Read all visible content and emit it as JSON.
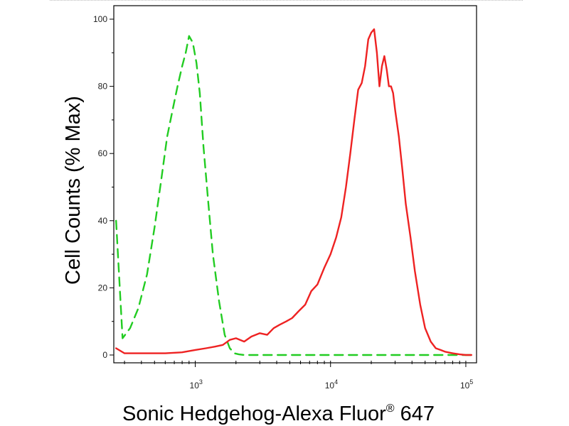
{
  "chart_data": {
    "type": "line",
    "title": "",
    "xlabel": "Sonic Hedgehog-Alexa Fluor",
    "xlabel_superscript": "®",
    "xlabel_suffix": " 647",
    "ylabel": "Cell Counts (% Max)",
    "xscale": "log",
    "xlim": [
      250,
      120000
    ],
    "ylim": [
      0,
      105
    ],
    "x_ticks": [
      {
        "value": 1000,
        "base": "10",
        "exp": "3"
      },
      {
        "value": 10000,
        "base": "10",
        "exp": "4"
      },
      {
        "value": 100000,
        "base": "10",
        "exp": "5"
      }
    ],
    "y_ticks": [
      "0",
      "20",
      "40",
      "60",
      "80",
      "100"
    ],
    "grid": false,
    "series": [
      {
        "color": "#22cc22",
        "style": "dashed",
        "x": [
          260,
          290,
          330,
          380,
          440,
          500,
          560,
          620,
          680,
          740,
          800,
          850,
          900,
          960,
          1020,
          1080,
          1150,
          1250,
          1350,
          1500,
          1650,
          1800,
          1950,
          2100,
          2300,
          2600,
          3000,
          5000,
          10000,
          50000,
          110000
        ],
        "y": [
          40,
          5,
          8,
          14,
          24,
          38,
          52,
          65,
          73,
          80,
          86,
          90,
          95,
          93,
          87,
          78,
          62,
          45,
          30,
          16,
          6,
          2,
          0.5,
          0.2,
          0,
          0,
          0,
          0,
          0,
          0,
          0
        ]
      },
      {
        "color": "#ee2222",
        "style": "solid",
        "x": [
          260,
          300,
          400,
          600,
          800,
          1000,
          1200,
          1400,
          1600,
          1800,
          2000,
          2300,
          2600,
          3000,
          3400,
          3800,
          4200,
          4700,
          5200,
          5800,
          6500,
          7200,
          8000,
          9000,
          10000,
          11000,
          12000,
          13000,
          14000,
          15000,
          16000,
          17000,
          18000,
          19000,
          20000,
          21000,
          22000,
          23000,
          24000,
          25000,
          26000,
          27000,
          28000,
          29000,
          30000,
          32000,
          34000,
          36000,
          39000,
          42000,
          46000,
          50000,
          55000,
          60000,
          65000,
          70000,
          80000,
          90000,
          100000,
          110000
        ],
        "y": [
          2,
          0.5,
          0.5,
          0.5,
          0.8,
          1.5,
          2,
          2.5,
          3,
          4.5,
          5,
          4,
          5.5,
          6.5,
          6,
          8,
          9,
          10,
          11,
          13,
          15,
          19,
          21,
          26,
          30,
          35,
          41,
          50,
          60,
          70,
          79,
          81,
          86,
          94,
          96,
          97,
          90,
          80,
          86,
          89,
          85,
          80,
          80,
          78,
          73,
          65,
          55,
          45,
          35,
          25,
          15,
          8,
          4,
          2,
          1.5,
          1,
          0.5,
          0.2,
          0,
          0
        ]
      }
    ]
  }
}
